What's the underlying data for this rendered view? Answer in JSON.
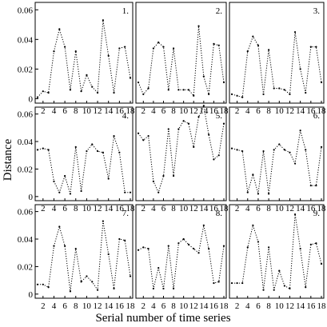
{
  "figure": {
    "ylabel": "Distance",
    "xlabel": "Serial number of time series"
  },
  "chart_data": [
    {
      "type": "line",
      "panel_label": "1.",
      "xlabel": "",
      "ylabel": "",
      "x": [
        1,
        2,
        3,
        4,
        5,
        6,
        7,
        8,
        9,
        10,
        11,
        12,
        13,
        14,
        15,
        16,
        17,
        18
      ],
      "y": [
        0.001,
        0.005,
        0.004,
        0.032,
        0.047,
        0.035,
        0.006,
        0.032,
        0.005,
        0.016,
        0.008,
        0.004,
        0.053,
        0.029,
        0.004,
        0.034,
        0.035,
        0.014
      ],
      "xlim": [
        1,
        18
      ],
      "ylim": [
        -0.003,
        0.065
      ],
      "xticks": [
        "2",
        "4",
        "6",
        "8",
        "10",
        "12",
        "14",
        "16",
        "18"
      ],
      "yticks": [
        "0",
        "0.02",
        "0.04",
        "0.06"
      ],
      "ytick_values": [
        0,
        0.02,
        0.04,
        0.06
      ],
      "line_style": "dotted",
      "grid": false
    },
    {
      "type": "line",
      "panel_label": "2.",
      "xlabel": "",
      "ylabel": "",
      "x": [
        1,
        2,
        3,
        4,
        5,
        6,
        7,
        8,
        9,
        10,
        11,
        12,
        13,
        14,
        15,
        16,
        17,
        18
      ],
      "y": [
        0.011,
        0.003,
        0.007,
        0.034,
        0.038,
        0.035,
        0.006,
        0.034,
        0.006,
        0.006,
        0.006,
        0.002,
        0.049,
        0.015,
        0.003,
        0.037,
        0.036,
        0.011
      ],
      "xlim": [
        1,
        18
      ],
      "ylim": [
        -0.003,
        0.065
      ],
      "xticks": [
        "2",
        "4",
        "6",
        "8",
        "10",
        "12",
        "14",
        "16",
        "18"
      ],
      "line_style": "dotted",
      "grid": false
    },
    {
      "type": "line",
      "panel_label": "3.",
      "xlabel": "",
      "ylabel": "",
      "x": [
        1,
        2,
        3,
        4,
        5,
        6,
        7,
        8,
        9,
        10,
        11,
        12,
        13,
        14,
        15,
        16,
        17,
        18
      ],
      "y": [
        0.003,
        0.002,
        0.001,
        0.032,
        0.042,
        0.036,
        0.003,
        0.033,
        0.007,
        0.007,
        0.006,
        0.003,
        0.045,
        0.02,
        0.004,
        0.035,
        0.035,
        0.011
      ],
      "xlim": [
        1,
        18
      ],
      "ylim": [
        -0.003,
        0.065
      ],
      "xticks": [
        "2",
        "4",
        "6",
        "8",
        "10",
        "12",
        "14",
        "16",
        "18"
      ],
      "line_style": "dotted",
      "grid": false
    },
    {
      "type": "line",
      "panel_label": "4.",
      "xlabel": "",
      "ylabel": "",
      "x": [
        1,
        2,
        3,
        4,
        5,
        6,
        7,
        8,
        9,
        10,
        11,
        12,
        13,
        14,
        15,
        16,
        17,
        18
      ],
      "y": [
        0.034,
        0.035,
        0.034,
        0.011,
        0.003,
        0.015,
        0.002,
        0.036,
        0.004,
        0.033,
        0.038,
        0.033,
        0.032,
        0.013,
        0.044,
        0.032,
        0.003,
        0.003
      ],
      "xlim": [
        1,
        18
      ],
      "ylim": [
        -0.003,
        0.065
      ],
      "xticks": [
        "2",
        "4",
        "6",
        "8",
        "10",
        "12",
        "14",
        "16",
        "18"
      ],
      "yticks": [
        "0",
        "0.02",
        "0.04",
        "0.06"
      ],
      "ytick_values": [
        0,
        0.02,
        0.04,
        0.06
      ],
      "line_style": "dotted",
      "grid": false
    },
    {
      "type": "line",
      "panel_label": "5.",
      "xlabel": "",
      "ylabel": "",
      "x": [
        1,
        2,
        3,
        4,
        5,
        6,
        7,
        8,
        9,
        10,
        11,
        12,
        13,
        14,
        15,
        16,
        17,
        18
      ],
      "y": [
        0.046,
        0.041,
        0.044,
        0.011,
        0.003,
        0.015,
        0.049,
        0.015,
        0.049,
        0.055,
        0.053,
        0.036,
        0.058,
        0.066,
        0.045,
        0.027,
        0.03,
        0.053
      ],
      "xlim": [
        1,
        18
      ],
      "ylim": [
        -0.003,
        0.065
      ],
      "xticks": [
        "2",
        "4",
        "6",
        "8",
        "10",
        "12",
        "14",
        "16",
        "18"
      ],
      "line_style": "dotted",
      "grid": false
    },
    {
      "type": "line",
      "panel_label": "6.",
      "xlabel": "",
      "ylabel": "",
      "x": [
        1,
        2,
        3,
        4,
        5,
        6,
        7,
        8,
        9,
        10,
        11,
        12,
        13,
        14,
        15,
        16,
        17,
        18
      ],
      "y": [
        0.035,
        0.034,
        0.033,
        0.003,
        0.016,
        0.002,
        0.033,
        0.002,
        0.034,
        0.038,
        0.034,
        0.032,
        0.024,
        0.048,
        0.034,
        0.008,
        0.008,
        0.036
      ],
      "xlim": [
        1,
        18
      ],
      "ylim": [
        -0.003,
        0.065
      ],
      "xticks": [
        "2",
        "4",
        "6",
        "8",
        "10",
        "12",
        "14",
        "16",
        "18"
      ],
      "line_style": "dotted",
      "grid": false
    },
    {
      "type": "line",
      "panel_label": "7.",
      "xlabel": "",
      "ylabel": "",
      "x": [
        1,
        2,
        3,
        4,
        5,
        6,
        7,
        8,
        9,
        10,
        11,
        12,
        13,
        14,
        15,
        16,
        17,
        18
      ],
      "y": [
        0.007,
        0.007,
        0.005,
        0.035,
        0.049,
        0.035,
        0.002,
        0.033,
        0.009,
        0.013,
        0.009,
        0.003,
        0.053,
        0.029,
        0.004,
        0.04,
        0.039,
        0.013
      ],
      "xlim": [
        1,
        18
      ],
      "ylim": [
        -0.003,
        0.065
      ],
      "xticks": [
        "2",
        "4",
        "6",
        "8",
        "10",
        "12",
        "14",
        "16",
        "18"
      ],
      "yticks": [
        "0",
        "0.02",
        "0.04",
        "0.06"
      ],
      "ytick_values": [
        0,
        0.02,
        0.04,
        0.06
      ],
      "line_style": "dotted",
      "grid": false
    },
    {
      "type": "line",
      "panel_label": "8.",
      "xlabel": "",
      "ylabel": "",
      "x": [
        1,
        2,
        3,
        4,
        5,
        6,
        7,
        8,
        9,
        10,
        11,
        12,
        13,
        14,
        15,
        16,
        17,
        18
      ],
      "y": [
        0.032,
        0.034,
        0.033,
        0.004,
        0.019,
        0.004,
        0.035,
        0.004,
        0.037,
        0.04,
        0.036,
        0.033,
        0.03,
        0.05,
        0.033,
        0.008,
        0.009,
        0.035
      ],
      "xlim": [
        1,
        18
      ],
      "ylim": [
        -0.003,
        0.065
      ],
      "xticks": [
        "2",
        "4",
        "6",
        "8",
        "10",
        "12",
        "14",
        "16",
        "18"
      ],
      "line_style": "dotted",
      "grid": false
    },
    {
      "type": "line",
      "panel_label": "9.",
      "xlabel": "",
      "ylabel": "",
      "x": [
        1,
        2,
        3,
        4,
        5,
        6,
        7,
        8,
        9,
        10,
        11,
        12,
        13,
        14,
        15,
        16,
        17,
        18
      ],
      "y": [
        0.008,
        0.008,
        0.008,
        0.034,
        0.05,
        0.038,
        0.003,
        0.034,
        0.003,
        0.017,
        0.006,
        0.004,
        0.058,
        0.033,
        0.005,
        0.036,
        0.037,
        0.022
      ],
      "xlim": [
        1,
        18
      ],
      "ylim": [
        -0.003,
        0.065
      ],
      "xticks": [
        "2",
        "4",
        "6",
        "8",
        "10",
        "12",
        "14",
        "16",
        "18"
      ],
      "line_style": "dotted",
      "grid": false
    }
  ]
}
